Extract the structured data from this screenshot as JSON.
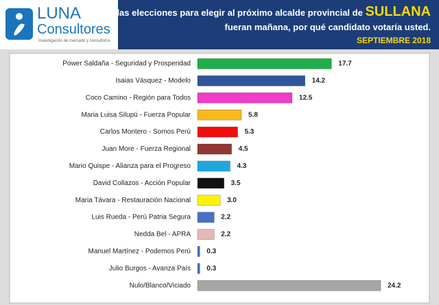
{
  "header": {
    "logo_brand": "LUNA",
    "logo_sub": "Consultores",
    "logo_tagline": "Investigación de mercado y consultoría",
    "title_line1": "Si las elecciones para elegir al próximo alcalde provincial de",
    "title_highlight": "SULLANA",
    "title_line2": "fueran mañana, por qué candidato votaría usted.",
    "date": "SEPTIEMBRE 2018"
  },
  "chart_data": {
    "type": "bar",
    "orientation": "horizontal",
    "categories": [
      "Power Saldaña - Seguridad y Prosperidad",
      "Isaias Vásquez  - Modelo",
      "Coco Camino - Región para Todos",
      "Maria Luisa Silupú - Fuerza Popular",
      "Carlos Montero - Somos Perú",
      "Juan More - Fuerza Regional",
      "Mario Quispe - Alianza para el Progreso",
      "David Collazos - Acción Popular",
      "Maria Távara - Restauración Nacional",
      "Luis Rueda - Perú Patria Segura",
      "Nedda Bel - APRA",
      "Manuel Martínez - Podemos Perú",
      "Julio Burgos - Avanza País",
      "Nulo/Blanco/Viciado"
    ],
    "values": [
      17.7,
      14.2,
      12.5,
      5.8,
      5.3,
      4.5,
      4.3,
      3.5,
      3.0,
      2.2,
      2.2,
      0.3,
      0.3,
      24.2
    ],
    "value_labels": [
      "17.7",
      "14.2",
      "12.5",
      "5.8",
      "5.3",
      "4.5",
      "4.3",
      "3.5",
      "3.0",
      "2.2",
      "2.2",
      "0.3",
      "0.3",
      "24.2"
    ],
    "colors": [
      "#1fae4b",
      "#2e5597",
      "#f03cc8",
      "#f9b81b",
      "#f20d0d",
      "#943634",
      "#1fa8e0",
      "#111111",
      "#fff200",
      "#4472c4",
      "#e6b8b7",
      "#4472c4",
      "#4472c4",
      "#a6a6a6"
    ]
  }
}
